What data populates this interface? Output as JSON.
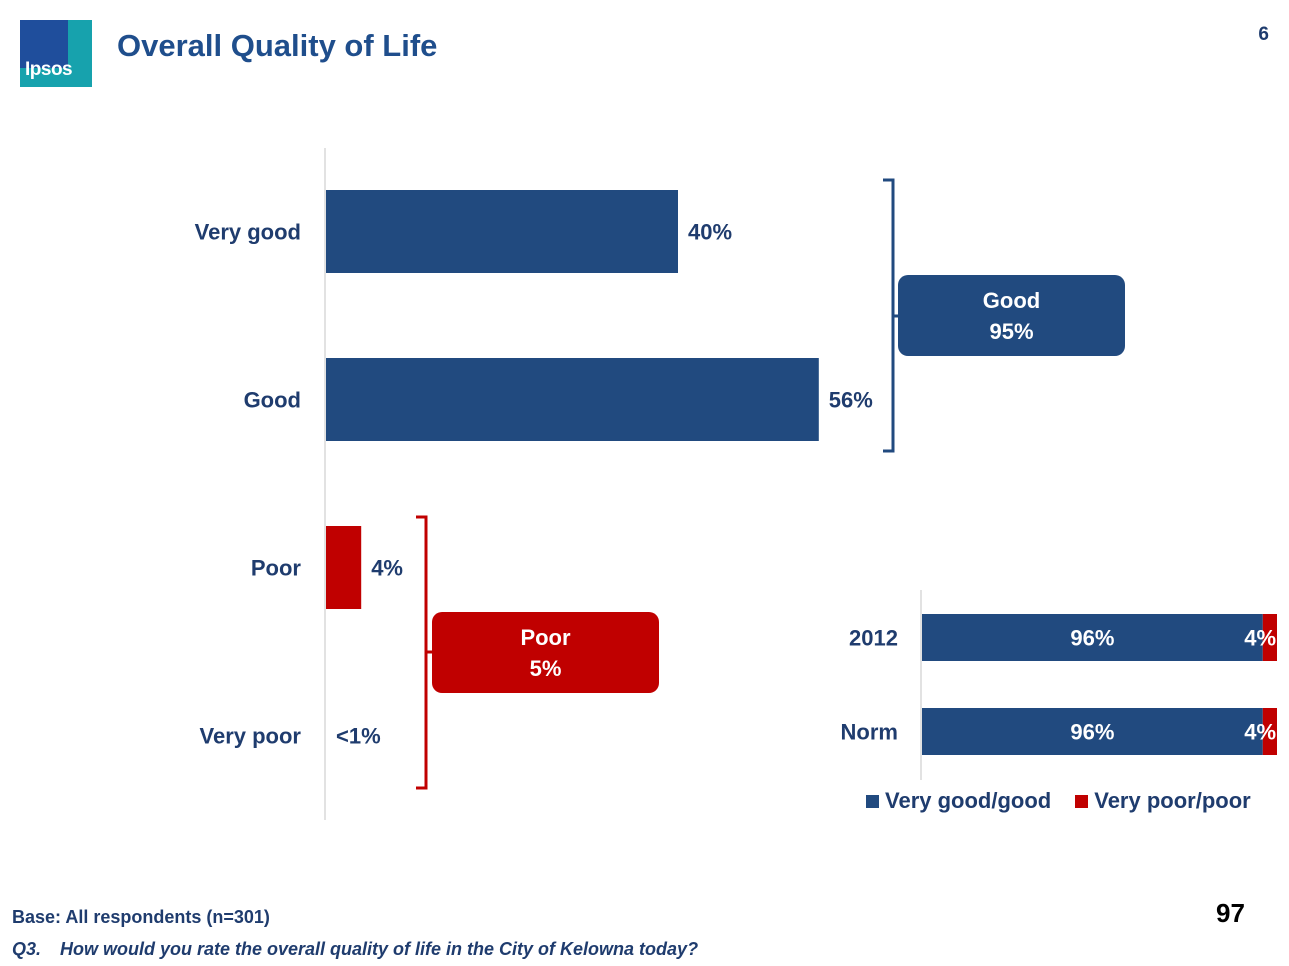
{
  "header": {
    "logo_text": "Ipsos",
    "title": "Overall Quality of Life",
    "page_number": "6"
  },
  "colors": {
    "positive": "#214a7f",
    "negative": "#c00000",
    "text": "#1f3c6e"
  },
  "chart_data": [
    {
      "type": "bar",
      "orientation": "horizontal",
      "categories": [
        "Very good",
        "Good",
        "Poor",
        "Very poor"
      ],
      "values": [
        40,
        56,
        4,
        0.5
      ],
      "value_labels": [
        "40%",
        "56%",
        "4%",
        "<1%"
      ],
      "bar_colors": [
        "#214a7f",
        "#214a7f",
        "#c00000",
        "#c00000"
      ],
      "xlim": [
        0,
        100
      ],
      "grid": false,
      "annotations": [
        {
          "label": "Good",
          "value": "95%",
          "groups": [
            "Very good",
            "Good"
          ]
        },
        {
          "label": "Poor",
          "value": "5%",
          "groups": [
            "Poor",
            "Very poor"
          ]
        }
      ]
    },
    {
      "type": "bar",
      "orientation": "horizontal",
      "stacked": true,
      "categories": [
        "2012",
        "Norm"
      ],
      "series": [
        {
          "name": "Very good/good",
          "values": [
            96,
            96
          ],
          "labels": [
            "96%",
            "96%"
          ],
          "color": "#214a7f"
        },
        {
          "name": "Very poor/poor",
          "values": [
            4,
            4
          ],
          "labels": [
            "4%",
            "4%"
          ],
          "color": "#c00000"
        }
      ],
      "xlim": [
        0,
        100
      ],
      "legend": "bottom"
    }
  ],
  "footer": {
    "base": "Base: All respondents (n=301)",
    "question_number": "Q3.",
    "question_text": "How would you rate the overall quality of life in the City of Kelowna today?",
    "slide_number": "97"
  }
}
